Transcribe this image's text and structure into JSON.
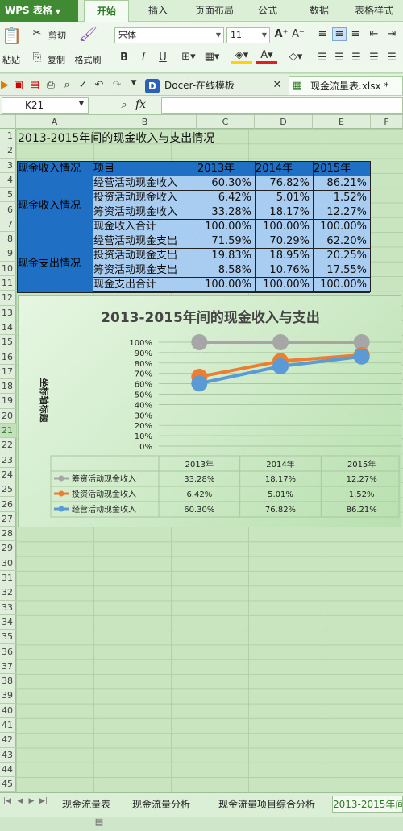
{
  "app": {
    "name": "WPS 表格",
    "tabs": [
      "开始",
      "插入",
      "页面布局",
      "公式",
      "数据",
      "表格样式"
    ],
    "active_tab": "开始"
  },
  "ribbon": {
    "paste": "粘贴",
    "cut": "剪切",
    "copy": "复制",
    "format_painter": "格式刷",
    "font_name": "宋体",
    "font_size": "11",
    "bold": "B",
    "italic": "I",
    "underline": "U"
  },
  "doc_tabs": [
    "Docer-在线模板",
    "现金流量表.xlsx *"
  ],
  "formula_bar": {
    "name_box": "K21",
    "fx": "fx",
    "content": ""
  },
  "columns": [
    "A",
    "B",
    "C",
    "D",
    "E",
    "F"
  ],
  "rows": [
    "1",
    "2",
    "3",
    "4",
    "5",
    "6",
    "7",
    "8",
    "9",
    "10",
    "11",
    "12",
    "13",
    "14",
    "15",
    "16",
    "17",
    "18",
    "19",
    "20",
    "21",
    "22",
    "23",
    "24",
    "25",
    "26",
    "27",
    "28",
    "29",
    "30",
    "31",
    "32",
    "33",
    "34",
    "35",
    "36",
    "37",
    "38",
    "39",
    "40",
    "41",
    "42",
    "43",
    "44",
    "45"
  ],
  "sheet": {
    "title": "2013-2015年间的现金收入与支出情况",
    "header": [
      "现金收入情况",
      "项目",
      "2013年",
      "2014年",
      "2015年"
    ],
    "income_label": "现金收入情况",
    "income_rows": [
      {
        "item": "经营活动现金收入",
        "v2013": "60.30%",
        "v2014": "76.82%",
        "v2015": "86.21%"
      },
      {
        "item": "投资活动现金收入",
        "v2013": "6.42%",
        "v2014": "5.01%",
        "v2015": "1.52%"
      },
      {
        "item": "筹资活动现金收入",
        "v2013": "33.28%",
        "v2014": "18.17%",
        "v2015": "12.27%"
      },
      {
        "item": "现金收入合计",
        "v2013": "100.00%",
        "v2014": "100.00%",
        "v2015": "100.00%"
      }
    ],
    "expense_label": "现金支出情况",
    "expense_rows": [
      {
        "item": "经营活动现金支出",
        "v2013": "71.59%",
        "v2014": "70.29%",
        "v2015": "62.20%"
      },
      {
        "item": "投资活动现金支出",
        "v2013": "19.83%",
        "v2014": "18.95%",
        "v2015": "20.25%"
      },
      {
        "item": "筹资活动现金支出",
        "v2013": "8.58%",
        "v2014": "10.76%",
        "v2015": "17.55%"
      },
      {
        "item": "现金支出合计",
        "v2013": "100.00%",
        "v2014": "100.00%",
        "v2015": "100.00%"
      }
    ]
  },
  "chart_data": {
    "type": "line",
    "title": "2013-2015年间的现金收入与支出",
    "ylabel": "坐标轴标题",
    "categories": [
      "2013年",
      "2014年",
      "2015年"
    ],
    "ylim": [
      0,
      100
    ],
    "yticks": [
      "0%",
      "10%",
      "20%",
      "30%",
      "40%",
      "50%",
      "60%",
      "70%",
      "80%",
      "90%",
      "100%"
    ],
    "stacked": true,
    "series": [
      {
        "name": "筹资活动现金收入",
        "values": [
          33.28,
          18.17,
          12.27
        ],
        "labels": [
          "33.28%",
          "18.17%",
          "12.27%"
        ],
        "color": "#a6a6a6"
      },
      {
        "name": "投资活动现金收入",
        "values": [
          6.42,
          5.01,
          1.52
        ],
        "labels": [
          "6.42%",
          "5.01%",
          "1.52%"
        ],
        "color": "#ed7d31"
      },
      {
        "name": "经营活动现金收入",
        "values": [
          60.3,
          76.82,
          86.21
        ],
        "labels": [
          "60.30%",
          "76.82%",
          "86.21%"
        ],
        "color": "#5b9bd5"
      }
    ]
  },
  "sheet_tabs": [
    "现金流量表",
    "现金流量分析",
    "现金流量项目综合分析",
    "2013-2015年间的"
  ]
}
